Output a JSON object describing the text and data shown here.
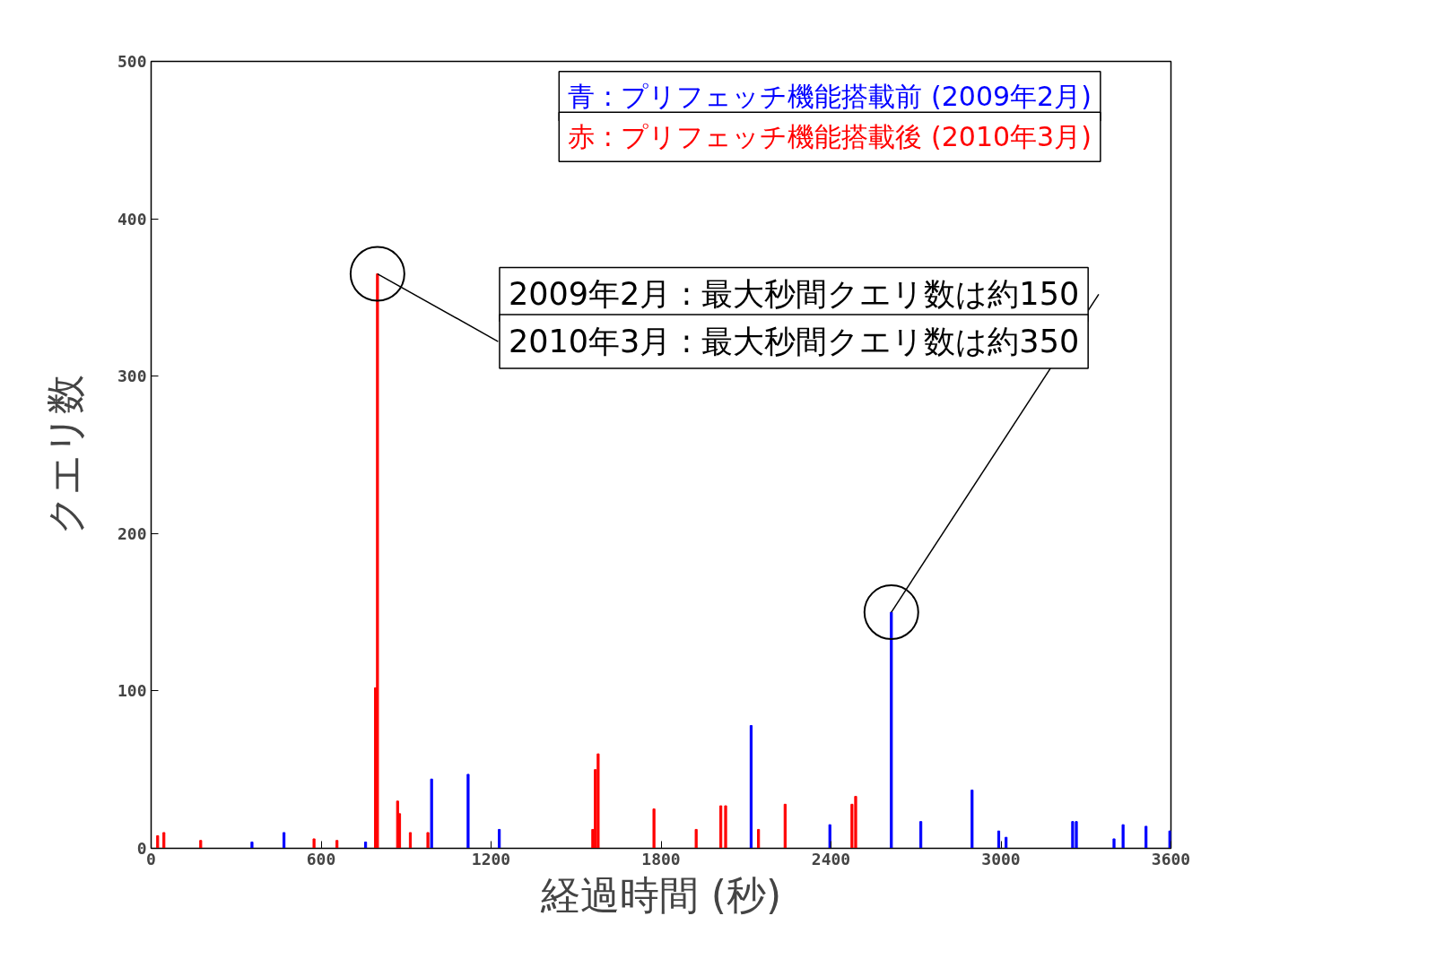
{
  "chart_data": {
    "type": "bar",
    "xlabel": "経過時間 (秒)",
    "ylabel": "クエリ数",
    "xlim": [
      0,
      3600
    ],
    "xticks": [
      0,
      600,
      1200,
      1800,
      2400,
      3000,
      3600
    ],
    "ylim": [
      0,
      500
    ],
    "yticks": [
      0,
      100,
      200,
      300,
      400,
      500
    ],
    "grid": false,
    "legend": "top right",
    "series": [
      {
        "name": "青 : プリフェッチ機能搭載前 (2009年2月)",
        "color": "#0000ff",
        "x": [
          356,
          469,
          757,
          990,
          1119,
          1229,
          2118,
          2396,
          2613,
          2717,
          2898,
          2992,
          3018,
          3253,
          3266,
          3399,
          3431,
          3512,
          3596
        ],
        "values": [
          4,
          10,
          4,
          44,
          47,
          12,
          78,
          15,
          150,
          17,
          37,
          11,
          7,
          17,
          17,
          6,
          15,
          14,
          11
        ]
      },
      {
        "name": "赤 : プリフェッチ機能搭載後 (2010年3月)",
        "color": "#ff0000",
        "x": [
          23,
          45,
          175,
          575,
          656,
          792,
          799,
          870,
          877,
          915,
          977,
          1559,
          1568,
          1578,
          1775,
          1924,
          2011,
          2028,
          2144,
          2238,
          2474,
          2487
        ],
        "values": [
          8,
          10,
          5,
          6,
          5,
          102,
          365,
          30,
          22,
          10,
          10,
          12,
          50,
          60,
          25,
          12,
          27,
          27,
          12,
          28,
          28,
          33
        ]
      }
    ],
    "annotations": [
      {
        "text": "2009年2月 : 最大秒間クエリ数は約150",
        "x": 2613,
        "y": 150
      },
      {
        "text": "2010年3月 : 最大秒間クエリ数は約350",
        "x": 799,
        "y": 365
      }
    ]
  }
}
